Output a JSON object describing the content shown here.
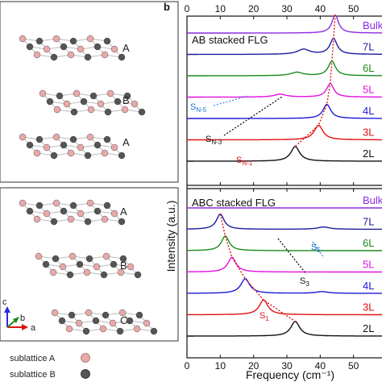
{
  "panel_b_label": "b",
  "lattice": {
    "top_box_layers": [
      "A",
      "B",
      "A"
    ],
    "bottom_box_layers": [
      "A",
      "B",
      "C"
    ],
    "axes": {
      "c": "c",
      "b": "b",
      "a": "a"
    },
    "legend": [
      {
        "label": "sublattice A",
        "color": "#e8a9a9"
      },
      {
        "label": "sublattice B",
        "color": "#555555"
      }
    ]
  },
  "colors": {
    "Bulk": "#8a2be2",
    "7L": "#1c1c9e",
    "6L": "#1a8a1a",
    "5L": "#e010e0",
    "4L": "#1a1ad6",
    "3L": "#e01010",
    "2L": "#111111",
    "fit": "#e01010"
  },
  "chart_data": {
    "type": "line",
    "xlabel": "Frequency (cm⁻¹)",
    "ylabel": "Intensity (a.u.)",
    "xlim": [
      0,
      60
    ],
    "xticks": [
      "0",
      "10",
      "20",
      "30",
      "40",
      "50",
      "6"
    ],
    "panels": [
      {
        "title": "AB stacked FLG",
        "series": [
          {
            "name": "Bulk",
            "peak": 44.5,
            "width": 1.2,
            "amp": 1.6
          },
          {
            "name": "7L",
            "peak": 44.0,
            "width": 1.3,
            "amp": 1.4,
            "extra_peak": 35,
            "extra_amp": 0.45
          },
          {
            "name": "6L",
            "peak": 43.5,
            "width": 1.3,
            "amp": 1.3,
            "extra_peak": 33,
            "extra_amp": 0.3
          },
          {
            "name": "5L",
            "peak": 43.0,
            "width": 1.3,
            "amp": 1.2,
            "extra_peak": 28,
            "extra_amp": 0.25
          },
          {
            "name": "4L",
            "peak": 42.0,
            "width": 1.4,
            "amp": 1.25
          },
          {
            "name": "3L",
            "peak": 39.5,
            "width": 1.6,
            "amp": 1.3
          },
          {
            "name": "2L",
            "peak": 32.5,
            "width": 1.6,
            "amp": 1.3
          }
        ],
        "annotations": [
          {
            "main": "S",
            "sub": "N-5"
          },
          {
            "main": "S",
            "sub": "N-3"
          },
          {
            "main": "S",
            "sub": "N-1"
          }
        ]
      },
      {
        "title": "ABC stacked FLG",
        "series": [
          {
            "name": "Bulk",
            "peak": null
          },
          {
            "name": "7L",
            "peak": 10.0,
            "width": 1.4,
            "amp": 1.35,
            "extra_peak": 41,
            "extra_amp": 0.2
          },
          {
            "name": "6L",
            "peak": 11.5,
            "width": 1.4,
            "amp": 1.3
          },
          {
            "name": "5L",
            "peak": 13.5,
            "width": 1.5,
            "amp": 1.3
          },
          {
            "name": "4L",
            "peak": 17.5,
            "width": 1.6,
            "amp": 1.3,
            "extra_peak": 40.5,
            "extra_amp": 0.15
          },
          {
            "name": "3L",
            "peak": 23.0,
            "width": 1.6,
            "amp": 1.3
          },
          {
            "name": "2L",
            "peak": 32.5,
            "width": 1.6,
            "amp": 1.3
          }
        ],
        "annotations": [
          {
            "main": "S",
            "sub": "5"
          },
          {
            "main": "S",
            "sub": "3"
          },
          {
            "main": "S",
            "sub": "1"
          }
        ]
      }
    ]
  }
}
